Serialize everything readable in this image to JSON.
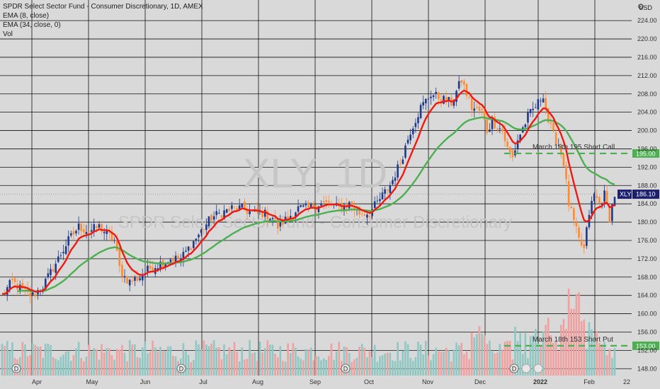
{
  "legend": {
    "title": "SPDR Select Sector Fund - Consumer Discretionary, 1D, AMEX",
    "ema_fast": "EMA (8, close)",
    "ema_slow": "EMA (34, close, 0)",
    "vol": "Vol"
  },
  "currency": "USD",
  "watermark": {
    "symbol": "XLY, 1D",
    "name": "SPDR Select Sector Fund - Consumer Discretionary"
  },
  "colors": {
    "background": "#d9d9d9",
    "grid": "#111111",
    "up": "#1e3a8a",
    "down": "#ff8a30",
    "ema_fast": "#ee1a12",
    "ema_slow": "#4caf50",
    "vol_up": "#8fc7c2",
    "vol_down": "#f1a0a0",
    "price_tag": "#1b1f6e",
    "level_tag": "#4caf50"
  },
  "chart_data": {
    "type": "candlestick",
    "symbol": "XLY",
    "timeframe": "1D",
    "exchange": "AMEX",
    "y_axis_ticks": [
      148,
      152,
      156,
      160,
      164,
      168,
      172,
      176,
      180,
      184,
      188,
      192,
      196,
      200,
      204,
      208,
      212,
      216,
      220,
      224
    ],
    "ylim": [
      146.5,
      228.5
    ],
    "x_axis_labels": [
      "Apr",
      "May",
      "Jun",
      "Jul",
      "Aug",
      "Sep",
      "Oct",
      "Nov",
      "Dec",
      "2022",
      "Feb",
      "22"
    ],
    "x_axis_bold": "2022",
    "dividend_markers": 6,
    "last_price": "186.10",
    "last_price_label": "XLY",
    "close_anchors": [
      [
        0,
        164
      ],
      [
        4,
        167
      ],
      [
        8,
        165
      ],
      [
        12,
        164
      ],
      [
        16,
        166
      ],
      [
        22,
        172
      ],
      [
        26,
        176
      ],
      [
        30,
        179
      ],
      [
        34,
        178
      ],
      [
        38,
        179
      ],
      [
        42,
        177
      ],
      [
        44,
        176
      ],
      [
        46,
        170
      ],
      [
        48,
        168
      ],
      [
        50,
        167
      ],
      [
        54,
        168
      ],
      [
        58,
        170
      ],
      [
        62,
        171
      ],
      [
        66,
        172
      ],
      [
        70,
        172
      ],
      [
        74,
        175
      ],
      [
        78,
        178
      ],
      [
        82,
        181
      ],
      [
        86,
        182
      ],
      [
        90,
        183
      ],
      [
        94,
        183
      ],
      [
        98,
        182
      ],
      [
        102,
        182
      ],
      [
        106,
        181
      ],
      [
        108,
        179
      ],
      [
        112,
        181
      ],
      [
        116,
        183
      ],
      [
        120,
        183
      ],
      [
        124,
        184
      ],
      [
        128,
        184
      ],
      [
        132,
        183
      ],
      [
        136,
        184
      ],
      [
        140,
        182
      ],
      [
        144,
        182
      ],
      [
        148,
        185
      ],
      [
        152,
        188
      ],
      [
        156,
        193
      ],
      [
        160,
        200
      ],
      [
        164,
        205
      ],
      [
        168,
        208
      ],
      [
        172,
        207
      ],
      [
        176,
        206
      ],
      [
        180,
        211
      ],
      [
        184,
        205
      ],
      [
        188,
        204
      ],
      [
        190,
        200
      ],
      [
        192,
        202
      ],
      [
        196,
        200
      ],
      [
        198,
        196
      ],
      [
        200,
        194
      ],
      [
        202,
        198
      ],
      [
        206,
        203
      ],
      [
        210,
        206
      ],
      [
        212,
        208
      ],
      [
        214,
        202
      ],
      [
        216,
        199
      ],
      [
        218,
        197
      ],
      [
        220,
        193
      ],
      [
        222,
        184
      ],
      [
        224,
        180
      ],
      [
        226,
        176
      ],
      [
        228,
        174
      ],
      [
        230,
        182
      ],
      [
        232,
        186
      ],
      [
        234,
        184
      ],
      [
        236,
        186
      ],
      [
        238,
        181
      ],
      [
        240,
        186
      ]
    ],
    "volume_ylim": [
      0,
      100
    ],
    "annotations": [
      {
        "label": "March 18th 195 Short Call",
        "value": 195,
        "tag": "195.00"
      },
      {
        "label": "March 18th 153 Short Put",
        "value": 153,
        "tag": "153.00"
      }
    ],
    "indicators": [
      {
        "name": "EMA 8",
        "period": 8
      },
      {
        "name": "EMA 34",
        "period": 34
      }
    ]
  }
}
